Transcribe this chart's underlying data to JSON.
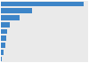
{
  "values": [
    27.4,
    10.5,
    6.2,
    3.0,
    2.2,
    1.8,
    1.4,
    0.8,
    0.35
  ],
  "bar_color": "#3d85c8",
  "background_color": "#eaeaea",
  "bar_background": "#ffffff",
  "n_bars": 9,
  "xlim": [
    0,
    29
  ]
}
